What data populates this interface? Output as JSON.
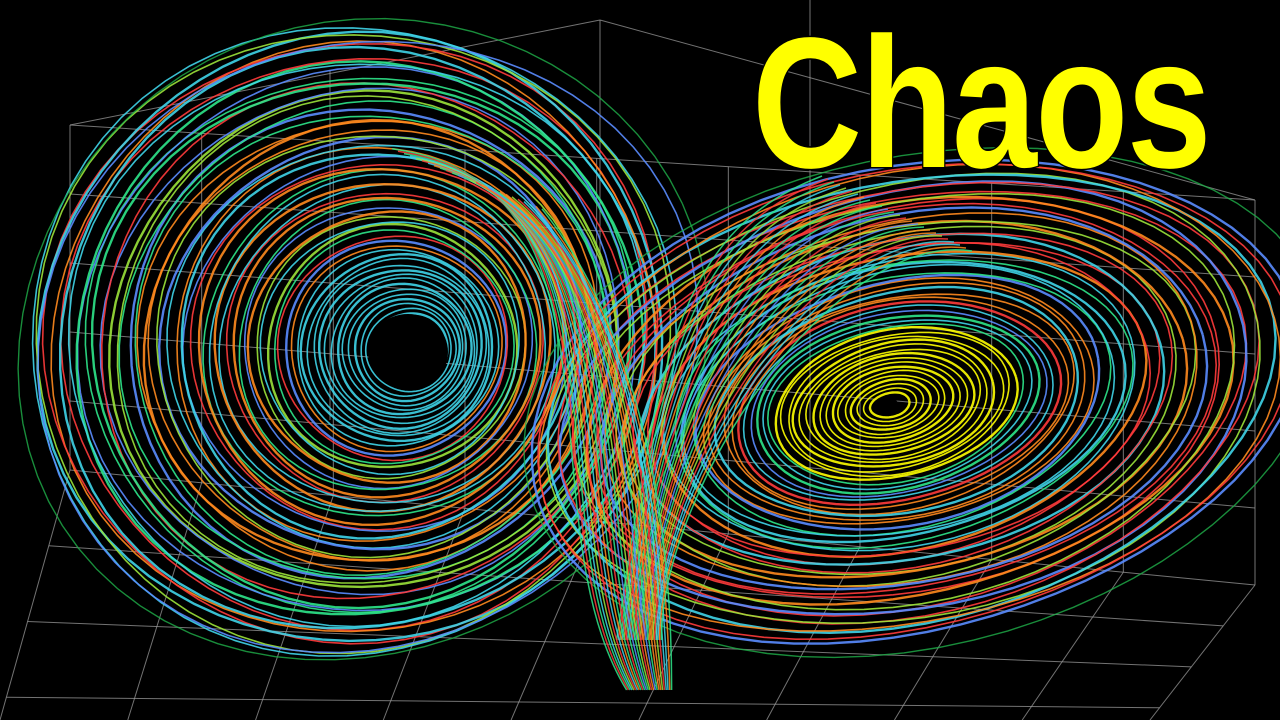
{
  "thumbnail": {
    "title": "Chaos",
    "title_color": "#ffff00",
    "background_color": "#000000",
    "subject": "lorenz-attractor",
    "palette": [
      "#3fd4e8",
      "#2ee68a",
      "#ff8a1e",
      "#ff3b3b",
      "#5a8cff",
      "#9be33a",
      "#1fb04a",
      "#ffff00"
    ]
  }
}
